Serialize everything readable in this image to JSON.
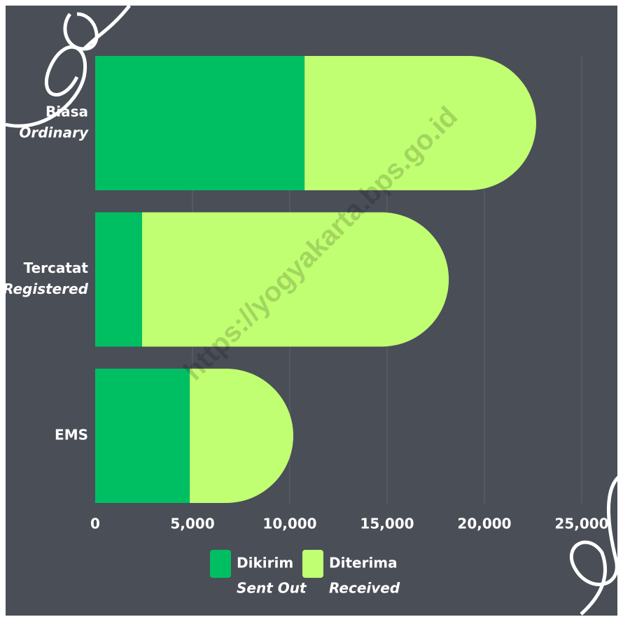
{
  "chart_data": {
    "type": "stacked-barh",
    "watermark": "https://yogyakarta.bps.go.id",
    "categories": [
      [
        "Biasa",
        "Ordinary"
      ],
      [
        "Tercatat",
        "Registered"
      ],
      [
        "EMS"
      ]
    ],
    "series": [
      {
        "name": [
          "Dikirim",
          "Sent Out"
        ],
        "color": "#00bf63",
        "values": [
          10760,
          2410,
          4860
        ]
      },
      {
        "name": [
          "Diterima",
          "Received"
        ],
        "color": "#c1ff72",
        "values": [
          11900,
          15760,
          5320
        ]
      }
    ],
    "xlim": [
      0,
      25000
    ],
    "xticks": [
      0,
      {
        "value": 5000,
        "label": "5,000"
      },
      {
        "value": 10000,
        "label": "10,000"
      },
      {
        "value": 15000,
        "label": "15,000"
      },
      {
        "value": 20000,
        "label": "20,000"
      },
      {
        "value": 25000,
        "label": "25,000"
      }
    ],
    "grid": true
  }
}
